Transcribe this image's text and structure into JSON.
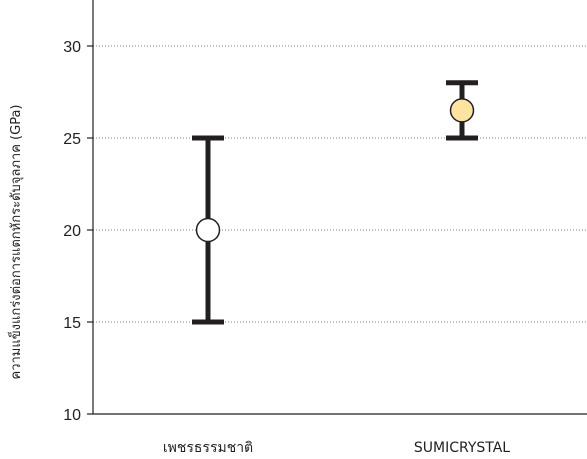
{
  "chart_data": {
    "type": "scatter",
    "title": "",
    "xlabel": "",
    "ylabel": "ความแข็งแกร่งต่อการแตกหักระดับจุลภาค (GPa)",
    "categories": [
      "เพชรธรรมชาติ",
      "SUMICRYSTAL"
    ],
    "ylim": [
      10,
      32.5
    ],
    "yticks": [
      10,
      15,
      20,
      25,
      30
    ],
    "grid": "horizontal dotted",
    "points": [
      {
        "category": "เพชรธรรมชาติ",
        "value": 20,
        "low": 15,
        "high": 25,
        "fill": "#ffffff"
      },
      {
        "category": "SUMICRYSTAL",
        "value": 26.5,
        "low": 25,
        "high": 28,
        "fill": "#fde3a0"
      }
    ]
  },
  "colors": {
    "axis": "#231f20",
    "grid": "#555555",
    "errorbar": "#231f20"
  }
}
